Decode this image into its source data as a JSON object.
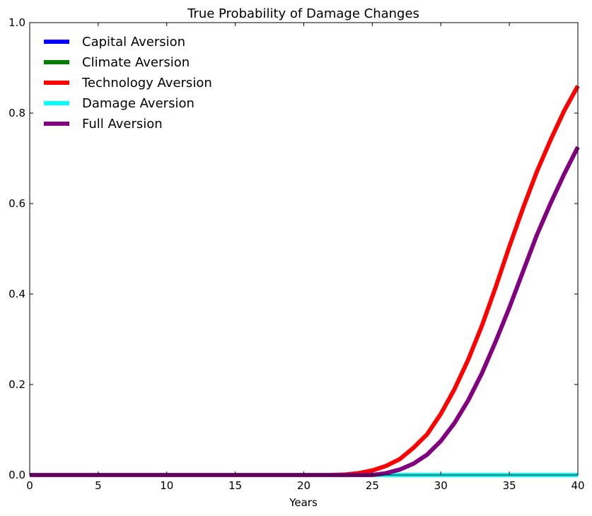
{
  "chart_data": {
    "type": "line",
    "title": "True Probability of Damage Changes",
    "xlabel": "Years",
    "ylabel": "",
    "xlim": [
      0,
      40
    ],
    "ylim": [
      0,
      1.0
    ],
    "xticks": [
      0,
      5,
      10,
      15,
      20,
      25,
      30,
      35,
      40
    ],
    "xtick_labels": [
      "0",
      "5",
      "10",
      "15",
      "20",
      "25",
      "30",
      "35",
      "40"
    ],
    "yticks": [
      0,
      0.2,
      0.4,
      0.6,
      0.8,
      1.0
    ],
    "ytick_labels": [
      "0.0",
      "0.2",
      "0.4",
      "0.6",
      "0.8",
      "1.0"
    ],
    "grid": false,
    "legend_position": "top-left",
    "series": [
      {
        "name": "Capital Aversion",
        "color": "#0000ff",
        "x": [
          0,
          40
        ],
        "y": [
          0,
          0
        ]
      },
      {
        "name": "Climate Aversion",
        "color": "#008000",
        "x": [
          0,
          40
        ],
        "y": [
          0,
          0
        ]
      },
      {
        "name": "Technology Aversion",
        "color": "#ff0000",
        "x": [
          0,
          22,
          23,
          24,
          25,
          26,
          27,
          28,
          29,
          30,
          31,
          32,
          33,
          34,
          35,
          36,
          37,
          38,
          39,
          40
        ],
        "y": [
          0,
          0,
          0.001,
          0.004,
          0.01,
          0.02,
          0.035,
          0.06,
          0.09,
          0.135,
          0.19,
          0.255,
          0.33,
          0.415,
          0.505,
          0.59,
          0.67,
          0.74,
          0.805,
          0.86
        ]
      },
      {
        "name": "Damage Aversion",
        "color": "#00ffff",
        "x": [
          0,
          40
        ],
        "y": [
          0,
          0
        ]
      },
      {
        "name": "Full Aversion",
        "color": "#800080",
        "x": [
          0,
          25,
          26,
          27,
          28,
          29,
          30,
          31,
          32,
          33,
          34,
          35,
          36,
          37,
          38,
          39,
          40
        ],
        "y": [
          0,
          0,
          0.004,
          0.012,
          0.025,
          0.045,
          0.075,
          0.115,
          0.165,
          0.225,
          0.295,
          0.37,
          0.45,
          0.53,
          0.6,
          0.665,
          0.725
        ]
      }
    ]
  }
}
